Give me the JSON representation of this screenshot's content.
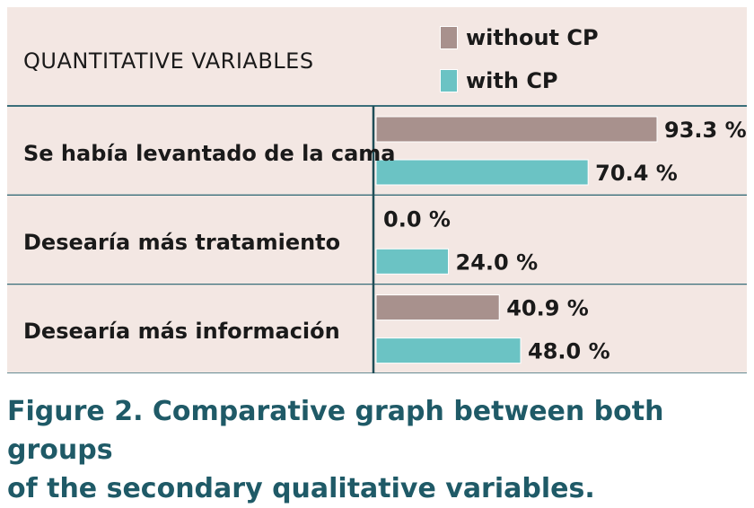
{
  "header": {
    "label": "QUANTITATIVE VARIABLES"
  },
  "legend": [
    {
      "name": "without CP",
      "color": "#a8918d"
    },
    {
      "name": "with CP",
      "color": "#6bc3c4"
    }
  ],
  "caption": {
    "line1": "Figure 2. Comparative graph between both groups",
    "line2": "of the secondary qualitative variables."
  },
  "chart_data": {
    "type": "bar",
    "orientation": "horizontal",
    "categories": [
      "Se había levantado de la cama",
      "Desearía más tratamiento",
      "Desearía más información"
    ],
    "series": [
      {
        "name": "without CP",
        "color": "#a8918d",
        "values": [
          93.3,
          0.0,
          40.9
        ],
        "labels": [
          "93.3 %",
          "0.0 %",
          "40.9 %"
        ]
      },
      {
        "name": "with CP",
        "color": "#6bc3c4",
        "values": [
          70.4,
          24.0,
          48.0
        ],
        "labels": [
          "70.4 %",
          "24.0 %",
          "48.0 %"
        ]
      }
    ],
    "xlim": [
      0,
      100
    ],
    "grid": false,
    "legend_position": "top-right"
  }
}
